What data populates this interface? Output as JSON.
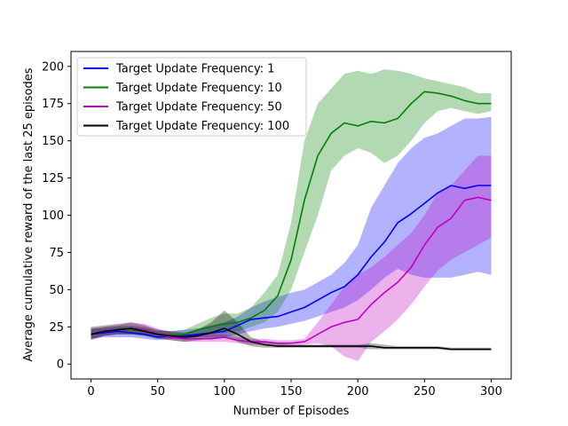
{
  "chart_data": {
    "type": "line",
    "xlabel": "Number of Episodes",
    "ylabel": "Average cumulative reward of the last 25 episodes",
    "xlim": [
      -15,
      315
    ],
    "ylim": [
      -10,
      210
    ],
    "x_ticks": [
      0,
      50,
      100,
      150,
      200,
      250,
      300
    ],
    "y_ticks": [
      0,
      25,
      50,
      75,
      100,
      125,
      150,
      175,
      200
    ],
    "grid": false,
    "legend_position": "top-left",
    "x": [
      0,
      10,
      20,
      30,
      40,
      50,
      60,
      70,
      80,
      90,
      100,
      110,
      120,
      130,
      140,
      150,
      160,
      170,
      180,
      190,
      200,
      210,
      220,
      230,
      240,
      250,
      260,
      270,
      280,
      290,
      300
    ],
    "series": [
      {
        "name": "Target Update Frequency: 1",
        "color": "#0000ff",
        "mean": [
          20,
          21,
          22,
          21,
          20,
          18,
          19,
          19,
          20,
          21,
          22,
          26,
          30,
          31,
          32,
          35,
          38,
          43,
          48,
          52,
          60,
          72,
          82,
          95,
          101,
          108,
          115,
          120,
          118,
          120,
          120
        ],
        "lower": [
          17,
          18,
          18,
          18,
          17,
          16,
          17,
          17,
          18,
          18,
          18,
          20,
          22,
          24,
          25,
          27,
          29,
          32,
          35,
          38,
          43,
          50,
          58,
          64,
          60,
          58,
          58,
          58,
          60,
          62,
          60
        ],
        "upper": [
          24,
          24,
          25,
          25,
          24,
          22,
          22,
          23,
          24,
          26,
          28,
          32,
          38,
          42,
          45,
          48,
          50,
          55,
          60,
          68,
          80,
          105,
          120,
          135,
          145,
          152,
          155,
          160,
          165,
          165,
          166
        ]
      },
      {
        "name": "Target Update Frequency: 10",
        "color": "#008000",
        "mean": [
          20,
          22,
          23,
          23,
          22,
          20,
          19,
          20,
          23,
          25,
          27,
          28,
          31,
          36,
          46,
          70,
          110,
          140,
          155,
          162,
          160,
          163,
          162,
          165,
          175,
          183,
          182,
          180,
          177,
          175,
          175
        ],
        "lower": [
          17,
          19,
          20,
          20,
          19,
          18,
          17,
          18,
          19,
          20,
          21,
          22,
          25,
          28,
          35,
          50,
          75,
          100,
          130,
          140,
          145,
          142,
          135,
          140,
          150,
          162,
          170,
          172,
          170,
          168,
          170
        ],
        "upper": [
          23,
          25,
          26,
          26,
          25,
          23,
          22,
          23,
          27,
          31,
          34,
          34,
          38,
          48,
          60,
          95,
          150,
          175,
          185,
          195,
          197,
          195,
          198,
          197,
          195,
          192,
          190,
          188,
          186,
          182,
          182
        ]
      },
      {
        "name": "Target Update Frequency: 50",
        "color": "#bf00bf",
        "mean": [
          20,
          22,
          23,
          24,
          23,
          20,
          18,
          17,
          17,
          17,
          18,
          16,
          15,
          15,
          14,
          14,
          15,
          20,
          25,
          28,
          30,
          40,
          48,
          55,
          65,
          80,
          92,
          98,
          110,
          112,
          110
        ],
        "lower": [
          17,
          19,
          20,
          20,
          20,
          18,
          16,
          15,
          15,
          15,
          15,
          14,
          13,
          13,
          12,
          12,
          13,
          14,
          12,
          5,
          2,
          15,
          22,
          30,
          40,
          52,
          63,
          70,
          75,
          80,
          85
        ],
        "upper": [
          24,
          25,
          26,
          28,
          27,
          24,
          21,
          20,
          20,
          20,
          20,
          18,
          17,
          17,
          16,
          16,
          17,
          28,
          40,
          52,
          60,
          65,
          72,
          80,
          88,
          100,
          115,
          120,
          130,
          140,
          140
        ]
      },
      {
        "name": "Target Update Frequency: 100",
        "color": "#000000",
        "mean": [
          20,
          22,
          23,
          24,
          22,
          20,
          19,
          18,
          19,
          21,
          24,
          20,
          15,
          13,
          12,
          12,
          12,
          12,
          12,
          12,
          12,
          12,
          11,
          11,
          11,
          11,
          11,
          10,
          10,
          10,
          10
        ],
        "lower": [
          16,
          19,
          20,
          20,
          19,
          17,
          16,
          15,
          16,
          17,
          18,
          15,
          12,
          11,
          11,
          11,
          11,
          11,
          11,
          11,
          11,
          10,
          10,
          10,
          10,
          10,
          10,
          9,
          9,
          9,
          9
        ],
        "upper": [
          25,
          26,
          27,
          28,
          26,
          23,
          22,
          21,
          23,
          28,
          36,
          28,
          18,
          15,
          14,
          13,
          13,
          13,
          13,
          13,
          13,
          14,
          13,
          12,
          12,
          12,
          12,
          11,
          11,
          11,
          11
        ]
      }
    ]
  }
}
